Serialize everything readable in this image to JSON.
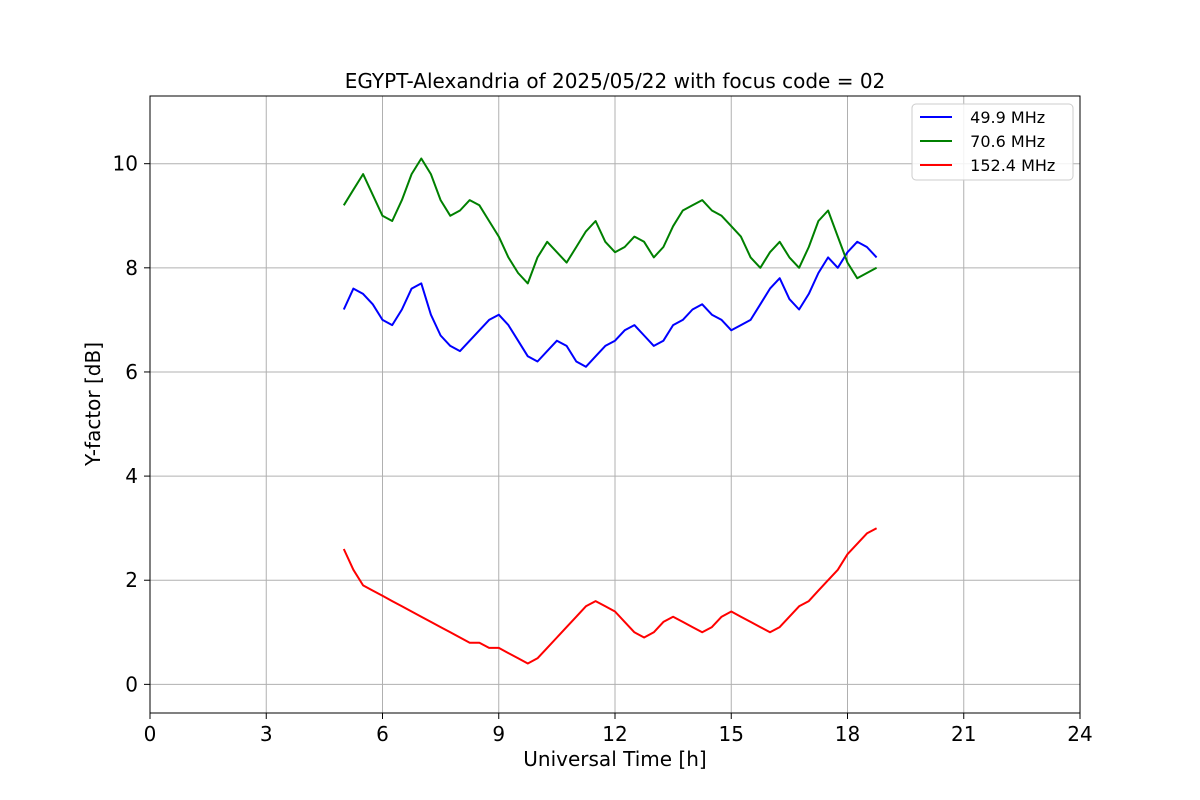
{
  "chart_data": {
    "type": "line",
    "title": "EGYPT-Alexandria of 2025/05/22 with focus code = 02",
    "xlabel": "Universal Time [h]",
    "ylabel": "Y-factor [dB]",
    "xlim": [
      0,
      24
    ],
    "ylim": [
      -0.55,
      11.3
    ],
    "xticks": [
      0,
      3,
      6,
      9,
      12,
      15,
      18,
      21,
      24
    ],
    "yticks": [
      0,
      2,
      4,
      6,
      8,
      10
    ],
    "grid": true,
    "legend_position": "top-right",
    "series": [
      {
        "name": "  49.9 MHz",
        "color": "#0000ff",
        "x": [
          5.0,
          5.25,
          5.5,
          5.75,
          6.0,
          6.25,
          6.5,
          6.75,
          7.0,
          7.25,
          7.5,
          7.75,
          8.0,
          8.25,
          8.5,
          8.75,
          9.0,
          9.25,
          9.5,
          9.75,
          10.0,
          10.25,
          10.5,
          10.75,
          11.0,
          11.25,
          11.5,
          11.75,
          12.0,
          12.25,
          12.5,
          12.75,
          13.0,
          13.25,
          13.5,
          13.75,
          14.0,
          14.25,
          14.5,
          14.75,
          15.0,
          15.25,
          15.5,
          15.75,
          16.0,
          16.25,
          16.5,
          16.75,
          17.0,
          17.25,
          17.5,
          17.75,
          18.0,
          18.25,
          18.5,
          18.75
        ],
        "values": [
          7.2,
          7.6,
          7.5,
          7.3,
          7.0,
          6.9,
          7.2,
          7.6,
          7.7,
          7.1,
          6.7,
          6.5,
          6.4,
          6.6,
          6.8,
          7.0,
          7.1,
          6.9,
          6.6,
          6.3,
          6.2,
          6.4,
          6.6,
          6.5,
          6.2,
          6.1,
          6.3,
          6.5,
          6.6,
          6.8,
          6.9,
          6.7,
          6.5,
          6.6,
          6.9,
          7.0,
          7.2,
          7.3,
          7.1,
          7.0,
          6.8,
          6.9,
          7.0,
          7.3,
          7.6,
          7.8,
          7.4,
          7.2,
          7.5,
          7.9,
          8.2,
          8.0,
          8.3,
          8.5,
          8.4,
          8.2
        ]
      },
      {
        "name": "  70.6 MHz",
        "color": "#008000",
        "x": [
          5.0,
          5.25,
          5.5,
          5.75,
          6.0,
          6.25,
          6.5,
          6.75,
          7.0,
          7.25,
          7.5,
          7.75,
          8.0,
          8.25,
          8.5,
          8.75,
          9.0,
          9.25,
          9.5,
          9.75,
          10.0,
          10.25,
          10.5,
          10.75,
          11.0,
          11.25,
          11.5,
          11.75,
          12.0,
          12.25,
          12.5,
          12.75,
          13.0,
          13.25,
          13.5,
          13.75,
          14.0,
          14.25,
          14.5,
          14.75,
          15.0,
          15.25,
          15.5,
          15.75,
          16.0,
          16.25,
          16.5,
          16.75,
          17.0,
          17.25,
          17.5,
          17.75,
          18.0,
          18.25,
          18.5,
          18.75
        ],
        "values": [
          9.2,
          9.5,
          9.8,
          9.4,
          9.0,
          8.9,
          9.3,
          9.8,
          10.1,
          9.8,
          9.3,
          9.0,
          9.1,
          9.3,
          9.2,
          8.9,
          8.6,
          8.2,
          7.9,
          7.7,
          8.2,
          8.5,
          8.3,
          8.1,
          8.4,
          8.7,
          8.9,
          8.5,
          8.3,
          8.4,
          8.6,
          8.5,
          8.2,
          8.4,
          8.8,
          9.1,
          9.2,
          9.3,
          9.1,
          9.0,
          8.8,
          8.6,
          8.2,
          8.0,
          8.3,
          8.5,
          8.2,
          8.0,
          8.4,
          8.9,
          9.1,
          8.6,
          8.1,
          7.8,
          7.9,
          8.0
        ]
      },
      {
        "name": "  152.4 MHz",
        "color": "#ff0000",
        "x": [
          5.0,
          5.25,
          5.5,
          5.75,
          6.0,
          6.25,
          6.5,
          6.75,
          7.0,
          7.25,
          7.5,
          7.75,
          8.0,
          8.25,
          8.5,
          8.75,
          9.0,
          9.25,
          9.5,
          9.75,
          10.0,
          10.25,
          10.5,
          10.75,
          11.0,
          11.25,
          11.5,
          11.75,
          12.0,
          12.25,
          12.5,
          12.75,
          13.0,
          13.25,
          13.5,
          13.75,
          14.0,
          14.25,
          14.5,
          14.75,
          15.0,
          15.25,
          15.5,
          15.75,
          16.0,
          16.25,
          16.5,
          16.75,
          17.0,
          17.25,
          17.5,
          17.75,
          18.0,
          18.25,
          18.5,
          18.75
        ],
        "values": [
          2.6,
          2.2,
          1.9,
          1.8,
          1.7,
          1.6,
          1.5,
          1.4,
          1.3,
          1.2,
          1.1,
          1.0,
          0.9,
          0.8,
          0.8,
          0.7,
          0.7,
          0.6,
          0.5,
          0.4,
          0.5,
          0.7,
          0.9,
          1.1,
          1.3,
          1.5,
          1.6,
          1.5,
          1.4,
          1.2,
          1.0,
          0.9,
          1.0,
          1.2,
          1.3,
          1.2,
          1.1,
          1.0,
          1.1,
          1.3,
          1.4,
          1.3,
          1.2,
          1.1,
          1.0,
          1.1,
          1.3,
          1.5,
          1.6,
          1.8,
          2.0,
          2.2,
          2.5,
          2.7,
          2.9,
          3.0
        ]
      }
    ]
  }
}
